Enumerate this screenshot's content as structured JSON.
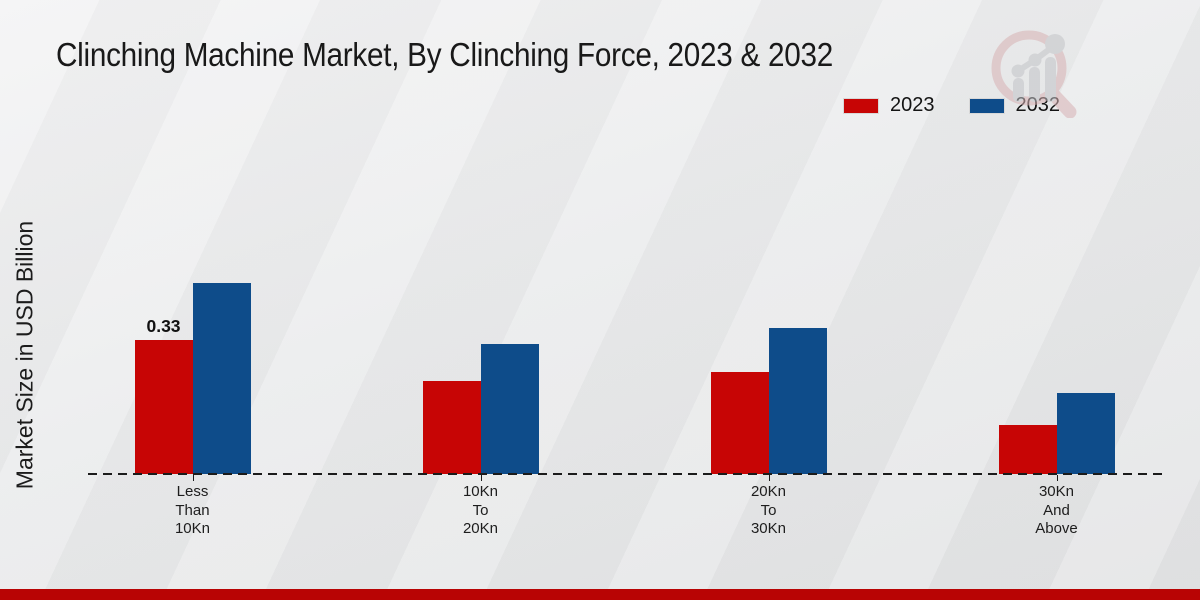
{
  "page": {
    "footer_color": "#b80404"
  },
  "header": {
    "title": "Clinching Machine Market, By Clinching Force, 2023 & 2032"
  },
  "legend": {
    "items": [
      {
        "label": "2023",
        "color": "#c70505"
      },
      {
        "label": "2032",
        "color": "#0e4c8a"
      }
    ]
  },
  "y_axis": {
    "label": "Market Size in USD Billion"
  },
  "watermark": {
    "icon": "magnifier-bar-chart-logo"
  },
  "chart_data": {
    "type": "bar",
    "title": "Clinching Machine Market, By Clinching Force, 2023 & 2032",
    "xlabel": "",
    "ylabel": "Market Size in USD Billion",
    "ylim": [
      0,
      0.55
    ],
    "grid": false,
    "legend_position": "top-right",
    "baseline_style": "dashed",
    "categories": [
      "Less Than 10Kn",
      "10Kn To 20Kn",
      "20Kn To 30Kn",
      "30Kn And Above"
    ],
    "categories_lines": [
      [
        "Less",
        "Than",
        "10Kn"
      ],
      [
        "10Kn",
        "To",
        "20Kn"
      ],
      [
        "20Kn",
        "To",
        "30Kn"
      ],
      [
        "30Kn",
        "And",
        "Above"
      ]
    ],
    "series": [
      {
        "name": "2023",
        "color": "#c70505",
        "values": [
          0.33,
          0.23,
          0.25,
          0.12
        ]
      },
      {
        "name": "2032",
        "color": "#0e4c8a",
        "values": [
          0.47,
          0.32,
          0.36,
          0.2
        ]
      }
    ],
    "bar_labels": [
      {
        "series": 0,
        "category": 0,
        "text": "0.33"
      }
    ]
  }
}
